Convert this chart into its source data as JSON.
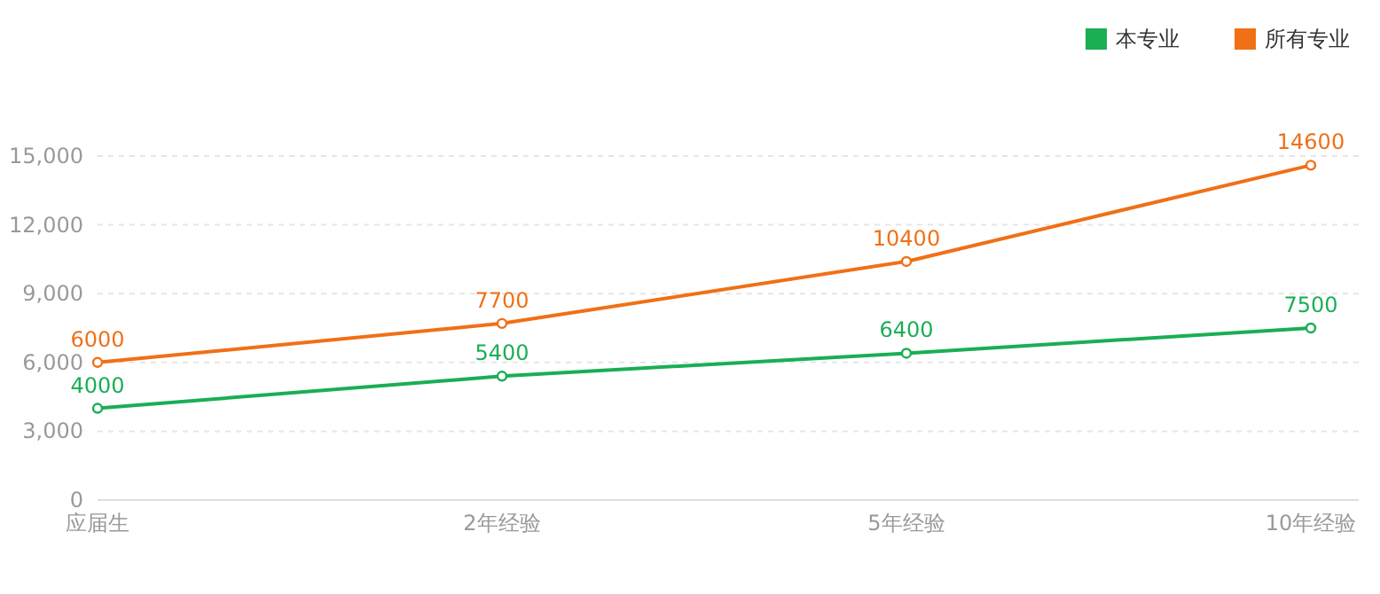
{
  "chart_data": {
    "type": "line",
    "categories": [
      "应届生",
      "2年经验",
      "5年经验",
      "10年经验"
    ],
    "series": [
      {
        "name": "本专业",
        "color": "#1aae55",
        "values": [
          4000,
          5400,
          6400,
          7500
        ]
      },
      {
        "name": "所有专业",
        "color": "#f07016",
        "values": [
          6000,
          7700,
          10400,
          14600
        ]
      }
    ],
    "ylim": [
      0,
      15000
    ],
    "yticks": [
      0,
      {
        "value": 3000,
        "label": "3,000"
      },
      {
        "value": 6000,
        "label": "6,000"
      },
      {
        "value": 9000,
        "label": "9,000"
      },
      {
        "value": 12000,
        "label": "12,000"
      },
      {
        "value": 15000,
        "label": "15,000"
      }
    ],
    "grid": "y",
    "legend": "top right",
    "marker": "circle",
    "data_labels": true
  }
}
